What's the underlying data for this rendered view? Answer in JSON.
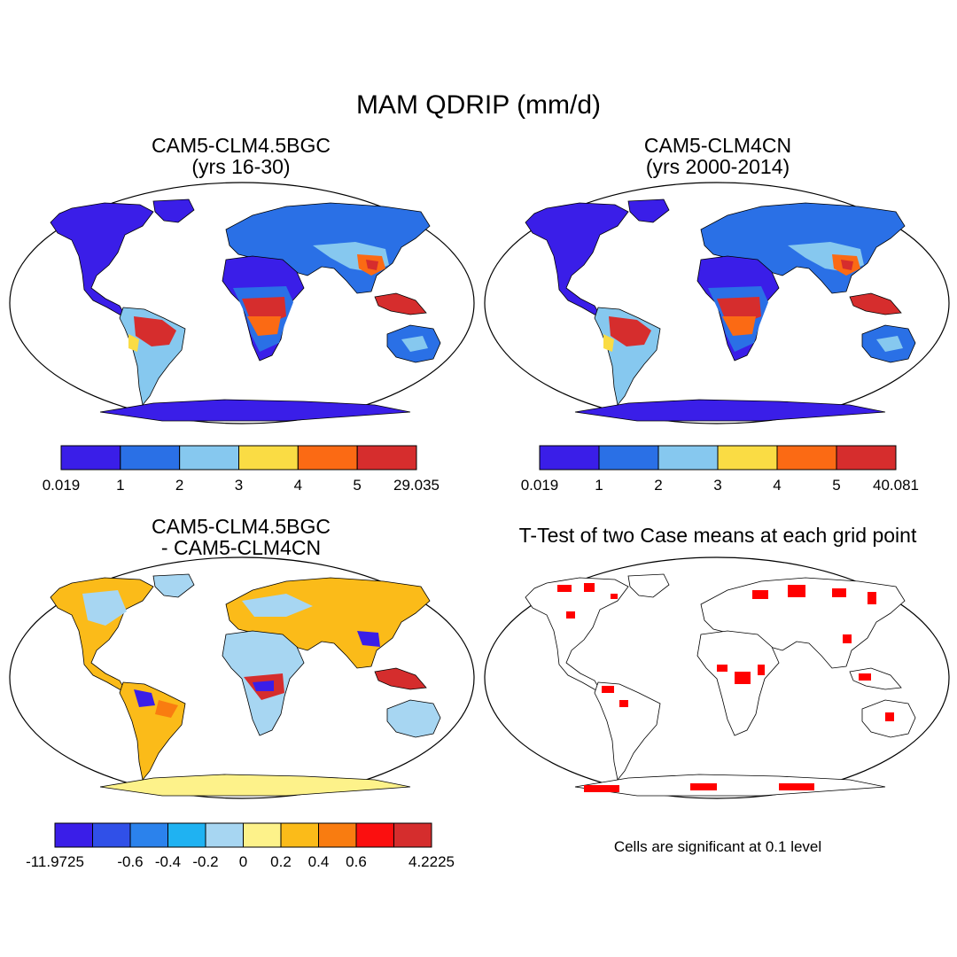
{
  "main_title": "MAM QDRIP (mm/d)",
  "panels": [
    {
      "title_line1": "CAM5-CLM4.5BGC",
      "title_line2": "(yrs 16-30)"
    },
    {
      "title_line1": "CAM5-CLM4CN",
      "title_line2": "(yrs 2000-2014)"
    },
    {
      "title_line1": "CAM5-CLM4.5BGC",
      "title_line2": "- CAM5-CLM4CN"
    },
    {
      "title_line1": "T-Test of two Case means at each grid point",
      "title_line2": ""
    }
  ],
  "colorbars": [
    {
      "colors": [
        "#3a1ee8",
        "#2a70e6",
        "#86c8ef",
        "#fadc44",
        "#fb6a14",
        "#d62d2d"
      ],
      "labels": [
        "0.019",
        "1",
        "2",
        "3",
        "4",
        "5",
        "29.035"
      ]
    },
    {
      "colors": [
        "#3a1ee8",
        "#2a70e6",
        "#86c8ef",
        "#fadc44",
        "#fb6a14",
        "#d62d2d"
      ],
      "labels": [
        "0.019",
        "1",
        "2",
        "3",
        "4",
        "5",
        "40.081"
      ]
    },
    {
      "colors": [
        "#3a1ee8",
        "#3050e8",
        "#2b82ec",
        "#1fb2f2",
        "#a7d6f2",
        "#fdf28a",
        "#fbbb19",
        "#f97c10",
        "#fb0f0f",
        "#d52d2d"
      ],
      "labels": [
        "-11.9725",
        "",
        "-0.6",
        "-0.4",
        "-0.2",
        "0",
        "0.2",
        "0.4",
        "0.6",
        "",
        "4.2225"
      ]
    }
  ],
  "significance_note": "Cells are significant at 0.1 level",
  "map_colors": {
    "ocean": "#ffffff",
    "outline": "#000000",
    "significance": "#ff0000"
  }
}
